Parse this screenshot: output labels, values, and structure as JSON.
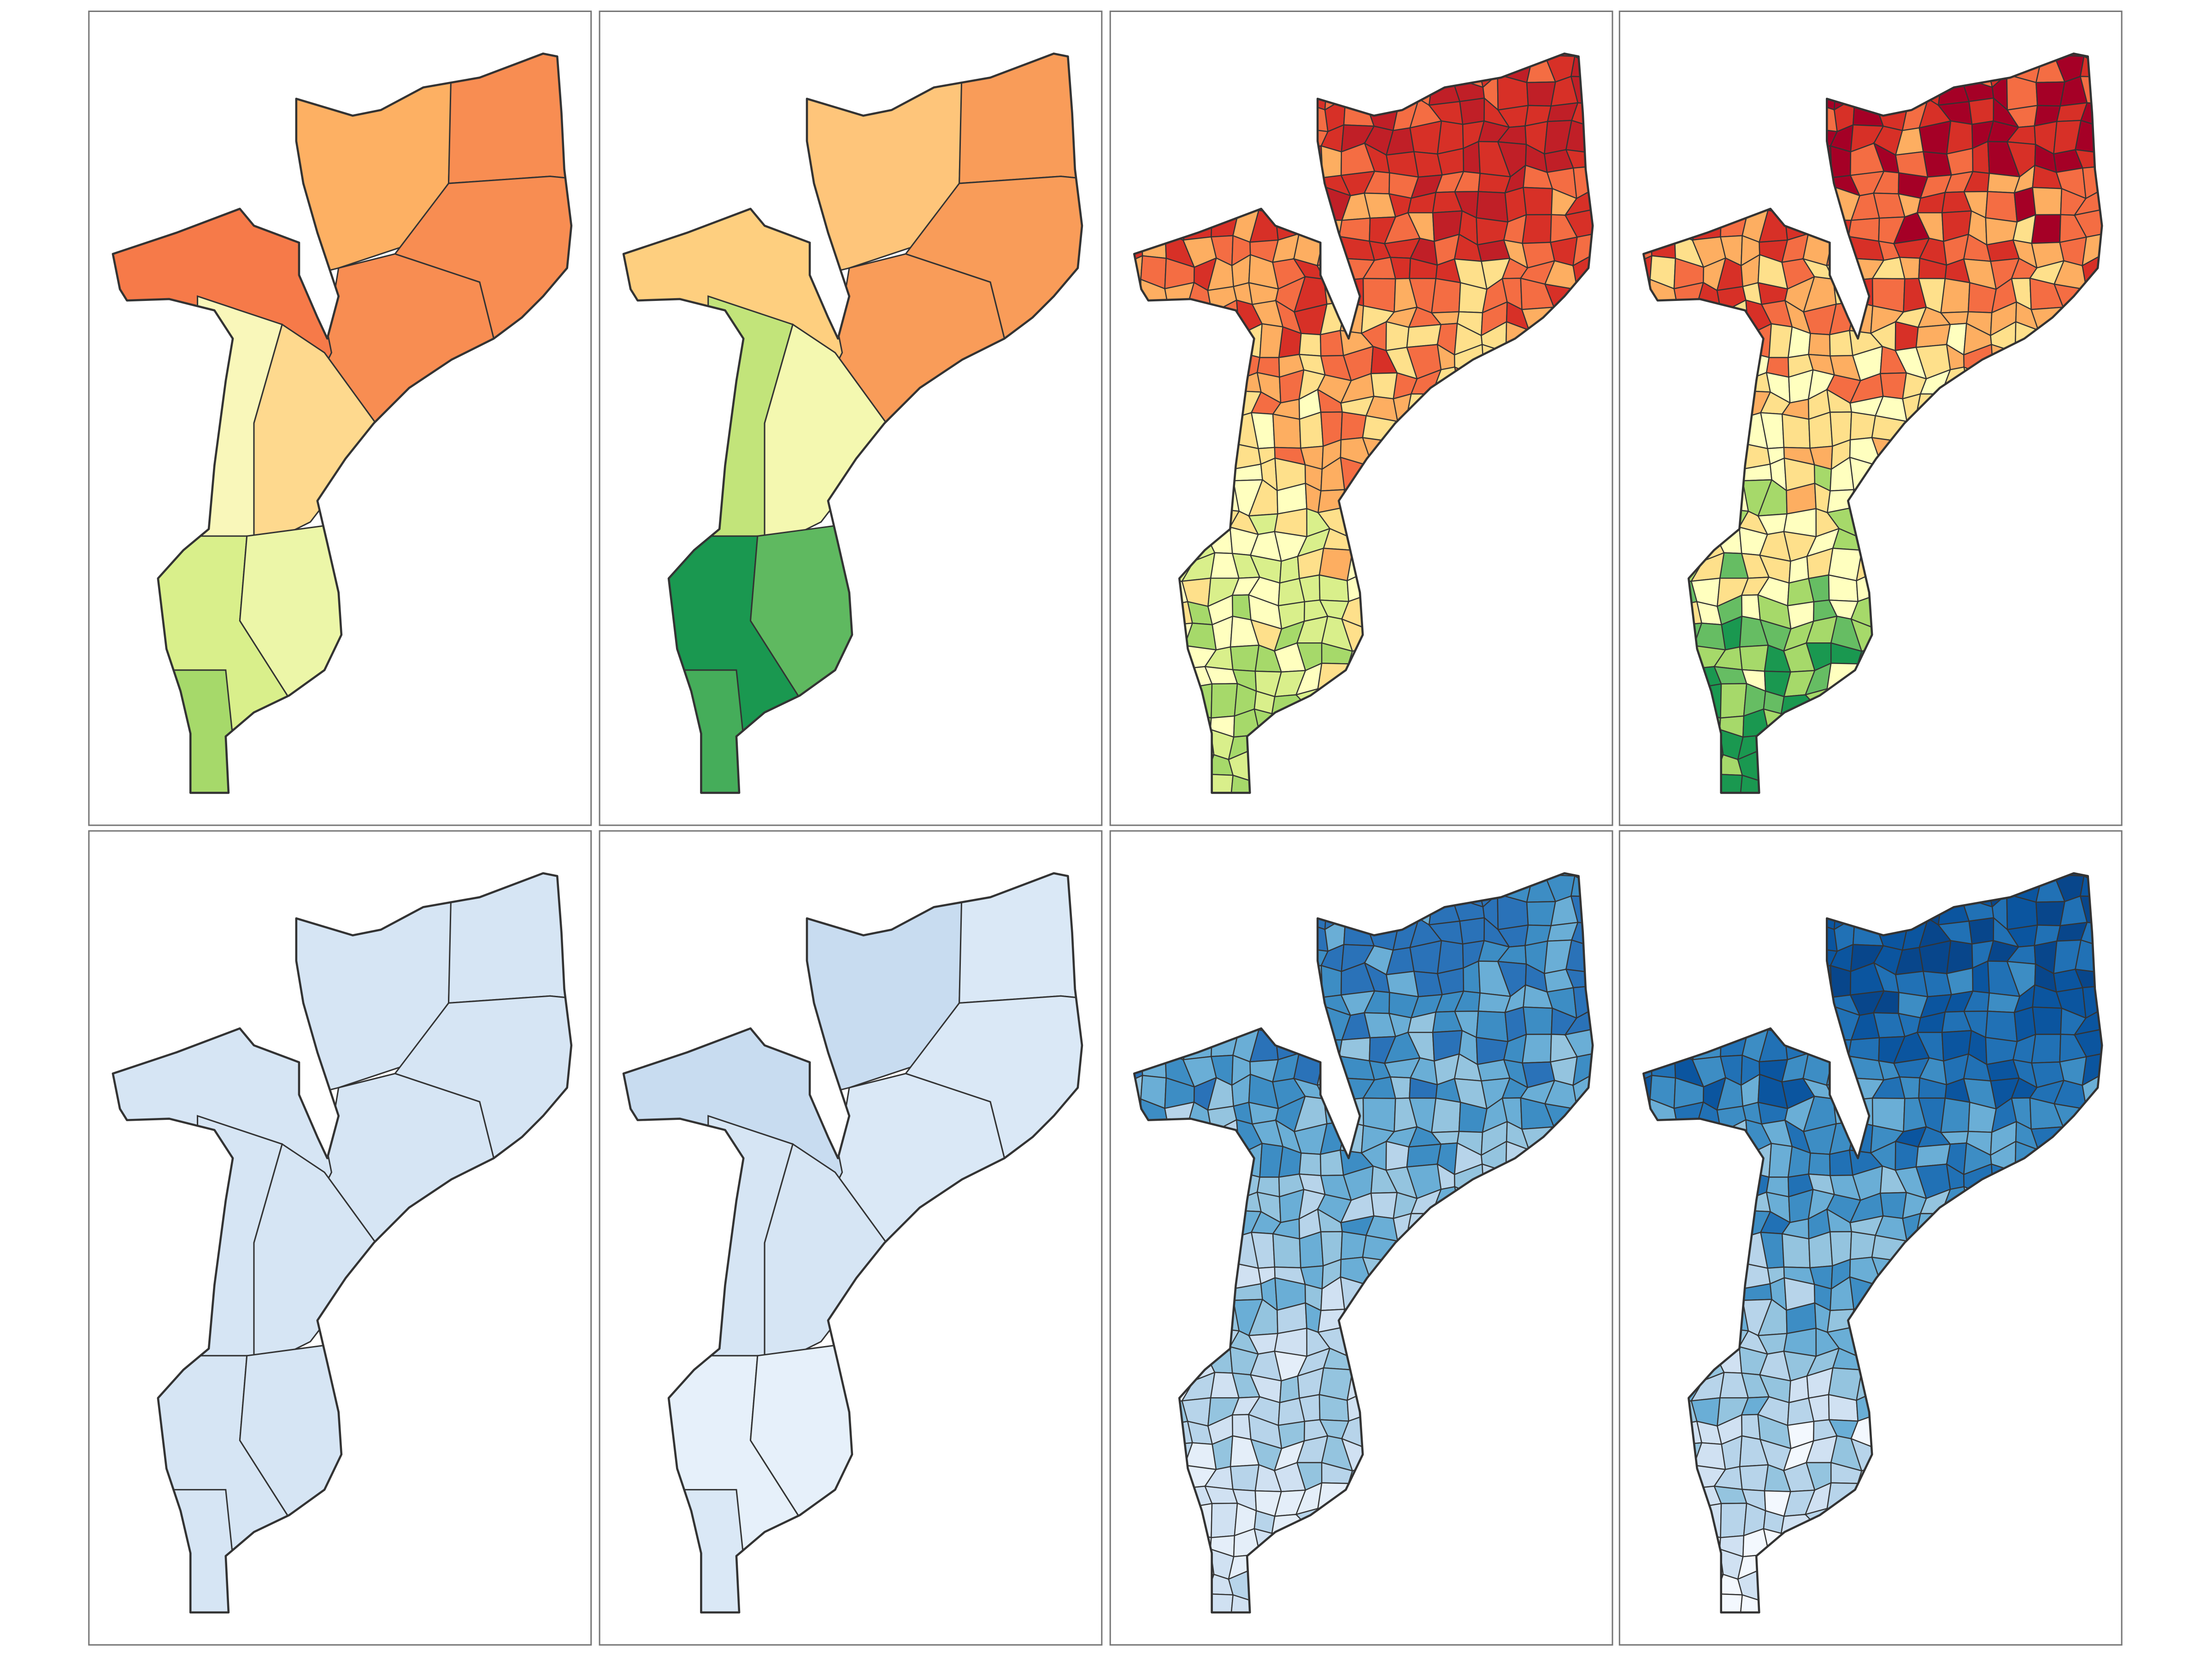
{
  "panels": [
    {
      "fills": [
        "#fdb063",
        "#f88d52",
        "#f88d52",
        "#f88d52",
        "#f67a49",
        "#f9f7ba",
        "#fed98e",
        "#d9ef8b",
        "#ecf6a8",
        "#a6d96a"
      ]
    },
    {
      "fills": [
        "#fec57a",
        "#f99c59",
        "#f99c59",
        "#f99c59",
        "#fecf7f",
        "#c2e47a",
        "#f4f8b0",
        "#1a9850",
        "#5fb960",
        "#45ad5a"
      ]
    },
    {
      "palette": [
        "#a6d96a",
        "#d9ef8b",
        "#ffffbf",
        "#fee08b",
        "#fdae61",
        "#f46d43",
        "#d73027",
        "#c01f27"
      ]
    },
    {
      "palette": [
        "#1a9850",
        "#66bd63",
        "#a6d96a",
        "#ffffbf",
        "#fee08b",
        "#fdae61",
        "#f46d43",
        "#d73027",
        "#a50026"
      ]
    },
    {
      "fills": [
        "#d6e5f4",
        "#d6e5f4",
        "#d6e5f4",
        "#d6e5f4",
        "#d6e5f4",
        "#d6e5f4",
        "#d6e5f4",
        "#d6e5f4",
        "#d6e5f4",
        "#d6e5f4"
      ]
    },
    {
      "fills": [
        "#c8dcf0",
        "#dae8f6",
        "#dae8f6",
        "#dae8f6",
        "#c8dcf0",
        "#d6e5f4",
        "#d6e5f4",
        "#e6f0fa",
        "#e6f0fa",
        "#dae8f6"
      ]
    },
    {
      "palette": [
        "#e4eef9",
        "#d0e1f2",
        "#b7d4ea",
        "#94c4df",
        "#6aaed6",
        "#3d8dc4",
        "#2a72b8"
      ]
    },
    {
      "palette": [
        "#f3f8fe",
        "#d0e1f2",
        "#b7d4ea",
        "#94c4df",
        "#6aaed6",
        "#3d8dc4",
        "#2171b5",
        "#0b559f",
        "#08468b"
      ]
    }
  ]
}
